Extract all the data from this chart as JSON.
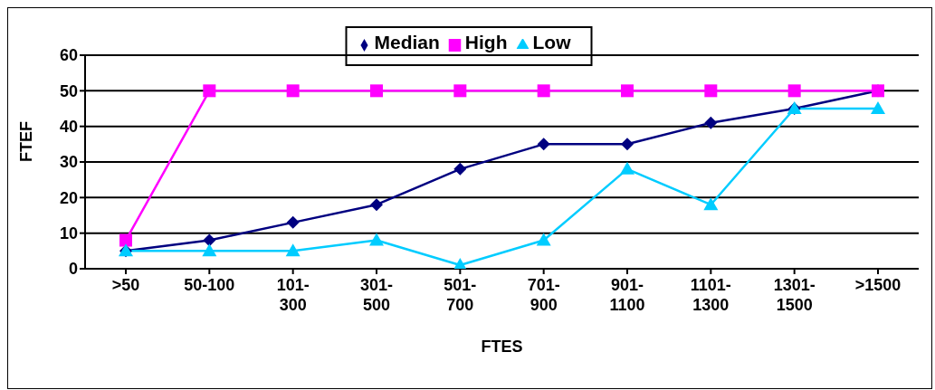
{
  "chart_data": {
    "type": "line",
    "xlabel": "FTES",
    "ylabel": "FTEF",
    "categories": [
      ">50",
      "50-100",
      "101-\n300",
      "301-\n500",
      "501-\n700",
      "701-\n900",
      "901-\n1100",
      "1101-\n1300",
      "1301-\n1500",
      ">1500"
    ],
    "series": [
      {
        "name": "Median",
        "color": "#000080",
        "marker": "diamond",
        "values": [
          5,
          8,
          13,
          18,
          28,
          35,
          35,
          41,
          45,
          50
        ]
      },
      {
        "name": "High",
        "color": "#ff00ff",
        "marker": "square",
        "values": [
          8,
          50,
          50,
          50,
          50,
          50,
          50,
          50,
          50,
          50
        ]
      },
      {
        "name": "Low",
        "color": "#00ccff",
        "marker": "triangle",
        "values": [
          5,
          5,
          5,
          8,
          1,
          8,
          28,
          18,
          45,
          45
        ]
      }
    ],
    "ylim": [
      0,
      60
    ],
    "yticks": [
      0,
      10,
      20,
      30,
      40,
      50,
      60
    ],
    "grid": "y",
    "legend": "top"
  }
}
